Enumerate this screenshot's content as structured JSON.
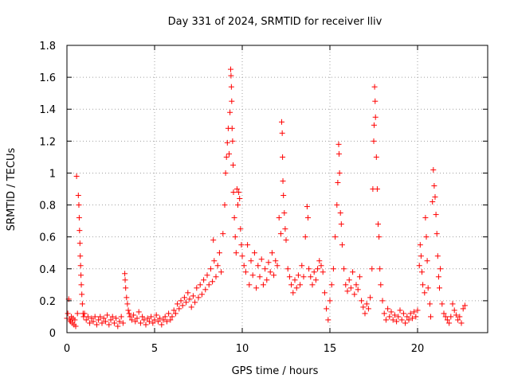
{
  "chart_data": {
    "type": "scatter",
    "title": "Day 331 of 2024, SRMTID for receiver lliv",
    "xlabel": "GPS time / hours",
    "ylabel": "SRMTID / TECUs",
    "xlim": [
      0,
      24
    ],
    "ylim": [
      0,
      1.8
    ],
    "xticks": [
      0,
      5,
      10,
      15,
      20
    ],
    "yticks": [
      0,
      0.2,
      0.4,
      0.6,
      0.8,
      1,
      1.2,
      1.4,
      1.6,
      1.8
    ],
    "xtick_labels": [
      "0",
      "5",
      "10",
      "15",
      "20"
    ],
    "ytick_labels": [
      "0",
      "0.2",
      "0.4",
      "0.6",
      "0.8",
      "1",
      "1.2",
      "1.4",
      "1.6",
      "1.8"
    ],
    "grid": true,
    "marker": "+",
    "color": "#ff0000",
    "series": [
      {
        "name": "SRMTID",
        "points": [
          [
            0.0,
            0.09
          ],
          [
            0.05,
            0.12
          ],
          [
            0.1,
            0.21
          ],
          [
            0.15,
            0.08
          ],
          [
            0.2,
            0.07
          ],
          [
            0.25,
            0.1
          ],
          [
            0.3,
            0.06
          ],
          [
            0.35,
            0.09
          ],
          [
            0.4,
            0.05
          ],
          [
            0.45,
            0.08
          ],
          [
            0.5,
            0.04
          ],
          [
            0.55,
            0.98
          ],
          [
            0.6,
            0.12
          ],
          [
            0.65,
            0.86
          ],
          [
            0.68,
            0.8
          ],
          [
            0.7,
            0.72
          ],
          [
            0.72,
            0.64
          ],
          [
            0.74,
            0.56
          ],
          [
            0.76,
            0.48
          ],
          [
            0.78,
            0.42
          ],
          [
            0.8,
            0.36
          ],
          [
            0.82,
            0.3
          ],
          [
            0.85,
            0.24
          ],
          [
            0.88,
            0.18
          ],
          [
            0.92,
            0.12
          ],
          [
            0.95,
            0.1
          ],
          [
            1.0,
            0.12
          ],
          [
            1.1,
            0.08
          ],
          [
            1.2,
            0.1
          ],
          [
            1.3,
            0.06
          ],
          [
            1.4,
            0.09
          ],
          [
            1.5,
            0.07
          ],
          [
            1.6,
            0.1
          ],
          [
            1.7,
            0.05
          ],
          [
            1.8,
            0.08
          ],
          [
            1.9,
            0.1
          ],
          [
            2.0,
            0.06
          ],
          [
            2.1,
            0.09
          ],
          [
            2.2,
            0.07
          ],
          [
            2.3,
            0.11
          ],
          [
            2.4,
            0.05
          ],
          [
            2.5,
            0.08
          ],
          [
            2.6,
            0.1
          ],
          [
            2.7,
            0.06
          ],
          [
            2.8,
            0.09
          ],
          [
            2.9,
            0.04
          ],
          [
            3.0,
            0.07
          ],
          [
            3.1,
            0.1
          ],
          [
            3.2,
            0.06
          ],
          [
            3.3,
            0.37
          ],
          [
            3.32,
            0.33
          ],
          [
            3.35,
            0.28
          ],
          [
            3.4,
            0.22
          ],
          [
            3.45,
            0.18
          ],
          [
            3.5,
            0.14
          ],
          [
            3.55,
            0.12
          ],
          [
            3.6,
            0.1
          ],
          [
            3.7,
            0.08
          ],
          [
            3.8,
            0.11
          ],
          [
            3.9,
            0.07
          ],
          [
            4.0,
            0.09
          ],
          [
            4.1,
            0.13
          ],
          [
            4.2,
            0.06
          ],
          [
            4.3,
            0.1
          ],
          [
            4.4,
            0.08
          ],
          [
            4.5,
            0.05
          ],
          [
            4.6,
            0.09
          ],
          [
            4.7,
            0.07
          ],
          [
            4.8,
            0.1
          ],
          [
            4.9,
            0.06
          ],
          [
            5.0,
            0.08
          ],
          [
            5.1,
            0.11
          ],
          [
            5.2,
            0.07
          ],
          [
            5.3,
            0.09
          ],
          [
            5.4,
            0.05
          ],
          [
            5.5,
            0.08
          ],
          [
            5.6,
            0.1
          ],
          [
            5.7,
            0.07
          ],
          [
            5.8,
            0.12
          ],
          [
            5.9,
            0.08
          ],
          [
            6.0,
            0.1
          ],
          [
            6.1,
            0.14
          ],
          [
            6.2,
            0.12
          ],
          [
            6.3,
            0.18
          ],
          [
            6.4,
            0.15
          ],
          [
            6.5,
            0.2
          ],
          [
            6.6,
            0.17
          ],
          [
            6.7,
            0.22
          ],
          [
            6.8,
            0.19
          ],
          [
            6.9,
            0.25
          ],
          [
            7.0,
            0.21
          ],
          [
            7.1,
            0.16
          ],
          [
            7.2,
            0.23
          ],
          [
            7.3,
            0.19
          ],
          [
            7.4,
            0.28
          ],
          [
            7.5,
            0.22
          ],
          [
            7.6,
            0.3
          ],
          [
            7.7,
            0.24
          ],
          [
            7.8,
            0.33
          ],
          [
            7.9,
            0.27
          ],
          [
            8.0,
            0.36
          ],
          [
            8.1,
            0.3
          ],
          [
            8.2,
            0.4
          ],
          [
            8.3,
            0.32
          ],
          [
            8.35,
            0.58
          ],
          [
            8.4,
            0.45
          ],
          [
            8.5,
            0.35
          ],
          [
            8.6,
            0.42
          ],
          [
            8.7,
            0.5
          ],
          [
            8.8,
            0.38
          ],
          [
            8.9,
            0.62
          ],
          [
            9.0,
            0.8
          ],
          [
            9.05,
            1.0
          ],
          [
            9.1,
            1.1
          ],
          [
            9.15,
            1.19
          ],
          [
            9.2,
            1.28
          ],
          [
            9.25,
            1.12
          ],
          [
            9.3,
            1.38
          ],
          [
            9.34,
            1.65
          ],
          [
            9.36,
            1.61
          ],
          [
            9.38,
            1.54
          ],
          [
            9.4,
            1.45
          ],
          [
            9.42,
            1.28
          ],
          [
            9.45,
            1.2
          ],
          [
            9.48,
            1.05
          ],
          [
            9.5,
            0.88
          ],
          [
            9.55,
            0.72
          ],
          [
            9.6,
            0.6
          ],
          [
            9.65,
            0.5
          ],
          [
            9.7,
            0.9
          ],
          [
            9.75,
            0.8
          ],
          [
            9.8,
            0.88
          ],
          [
            9.85,
            0.84
          ],
          [
            9.9,
            0.65
          ],
          [
            9.95,
            0.55
          ],
          [
            10.0,
            0.48
          ],
          [
            10.1,
            0.42
          ],
          [
            10.2,
            0.38
          ],
          [
            10.3,
            0.55
          ],
          [
            10.4,
            0.3
          ],
          [
            10.5,
            0.45
          ],
          [
            10.6,
            0.36
          ],
          [
            10.7,
            0.5
          ],
          [
            10.8,
            0.28
          ],
          [
            10.9,
            0.42
          ],
          [
            11.0,
            0.35
          ],
          [
            11.1,
            0.46
          ],
          [
            11.2,
            0.3
          ],
          [
            11.3,
            0.4
          ],
          [
            11.4,
            0.33
          ],
          [
            11.5,
            0.44
          ],
          [
            11.6,
            0.38
          ],
          [
            11.7,
            0.5
          ],
          [
            11.8,
            0.36
          ],
          [
            11.9,
            0.45
          ],
          [
            12.0,
            0.42
          ],
          [
            12.1,
            0.72
          ],
          [
            12.2,
            0.62
          ],
          [
            12.25,
            1.32
          ],
          [
            12.28,
            1.25
          ],
          [
            12.3,
            1.1
          ],
          [
            12.32,
            0.95
          ],
          [
            12.35,
            0.86
          ],
          [
            12.4,
            0.75
          ],
          [
            12.45,
            0.65
          ],
          [
            12.5,
            0.58
          ],
          [
            12.6,
            0.4
          ],
          [
            12.7,
            0.35
          ],
          [
            12.8,
            0.3
          ],
          [
            12.9,
            0.25
          ],
          [
            13.0,
            0.33
          ],
          [
            13.1,
            0.28
          ],
          [
            13.2,
            0.36
          ],
          [
            13.3,
            0.3
          ],
          [
            13.4,
            0.42
          ],
          [
            13.5,
            0.35
          ],
          [
            13.6,
            0.6
          ],
          [
            13.7,
            0.79
          ],
          [
            13.75,
            0.72
          ],
          [
            13.8,
            0.4
          ],
          [
            13.9,
            0.35
          ],
          [
            14.0,
            0.3
          ],
          [
            14.1,
            0.38
          ],
          [
            14.2,
            0.33
          ],
          [
            14.3,
            0.4
          ],
          [
            14.4,
            0.45
          ],
          [
            14.5,
            0.42
          ],
          [
            14.6,
            0.38
          ],
          [
            14.7,
            0.25
          ],
          [
            14.8,
            0.15
          ],
          [
            14.9,
            0.08
          ],
          [
            15.0,
            0.2
          ],
          [
            15.1,
            0.3
          ],
          [
            15.2,
            0.4
          ],
          [
            15.3,
            0.6
          ],
          [
            15.4,
            0.8
          ],
          [
            15.45,
            0.94
          ],
          [
            15.5,
            1.18
          ],
          [
            15.52,
            1.12
          ],
          [
            15.55,
            1.0
          ],
          [
            15.6,
            0.75
          ],
          [
            15.65,
            0.68
          ],
          [
            15.7,
            0.55
          ],
          [
            15.8,
            0.4
          ],
          [
            15.9,
            0.3
          ],
          [
            16.0,
            0.26
          ],
          [
            16.1,
            0.33
          ],
          [
            16.2,
            0.28
          ],
          [
            16.3,
            0.38
          ],
          [
            16.4,
            0.24
          ],
          [
            16.5,
            0.3
          ],
          [
            16.6,
            0.27
          ],
          [
            16.7,
            0.35
          ],
          [
            16.8,
            0.2
          ],
          [
            16.9,
            0.16
          ],
          [
            17.0,
            0.12
          ],
          [
            17.1,
            0.18
          ],
          [
            17.2,
            0.15
          ],
          [
            17.3,
            0.22
          ],
          [
            17.4,
            0.4
          ],
          [
            17.45,
            0.9
          ],
          [
            17.5,
            1.2
          ],
          [
            17.52,
            1.3
          ],
          [
            17.55,
            1.54
          ],
          [
            17.58,
            1.45
          ],
          [
            17.6,
            1.35
          ],
          [
            17.65,
            1.1
          ],
          [
            17.7,
            0.9
          ],
          [
            17.75,
            0.68
          ],
          [
            17.8,
            0.6
          ],
          [
            17.85,
            0.4
          ],
          [
            17.9,
            0.3
          ],
          [
            18.0,
            0.2
          ],
          [
            18.1,
            0.12
          ],
          [
            18.2,
            0.08
          ],
          [
            18.3,
            0.15
          ],
          [
            18.4,
            0.1
          ],
          [
            18.5,
            0.13
          ],
          [
            18.6,
            0.08
          ],
          [
            18.7,
            0.11
          ],
          [
            18.8,
            0.07
          ],
          [
            18.9,
            0.1
          ],
          [
            19.0,
            0.14
          ],
          [
            19.1,
            0.08
          ],
          [
            19.2,
            0.12
          ],
          [
            19.3,
            0.06
          ],
          [
            19.4,
            0.1
          ],
          [
            19.5,
            0.08
          ],
          [
            19.6,
            0.12
          ],
          [
            19.7,
            0.09
          ],
          [
            19.8,
            0.13
          ],
          [
            19.9,
            0.1
          ],
          [
            20.0,
            0.14
          ],
          [
            20.1,
            0.42
          ],
          [
            20.15,
            0.55
          ],
          [
            20.2,
            0.48
          ],
          [
            20.25,
            0.38
          ],
          [
            20.3,
            0.3
          ],
          [
            20.4,
            0.25
          ],
          [
            20.45,
            0.72
          ],
          [
            20.5,
            0.6
          ],
          [
            20.55,
            0.45
          ],
          [
            20.6,
            0.28
          ],
          [
            20.7,
            0.18
          ],
          [
            20.75,
            0.1
          ],
          [
            20.85,
            0.82
          ],
          [
            20.9,
            1.02
          ],
          [
            20.95,
            0.92
          ],
          [
            21.0,
            0.85
          ],
          [
            21.05,
            0.74
          ],
          [
            21.1,
            0.62
          ],
          [
            21.15,
            0.48
          ],
          [
            21.2,
            0.35
          ],
          [
            21.25,
            0.28
          ],
          [
            21.3,
            0.4
          ],
          [
            21.4,
            0.18
          ],
          [
            21.5,
            0.12
          ],
          [
            21.6,
            0.1
          ],
          [
            21.7,
            0.08
          ],
          [
            21.8,
            0.06
          ],
          [
            21.9,
            0.1
          ],
          [
            22.0,
            0.18
          ],
          [
            22.1,
            0.14
          ],
          [
            22.2,
            0.11
          ],
          [
            22.3,
            0.08
          ],
          [
            22.4,
            0.1
          ],
          [
            22.5,
            0.06
          ],
          [
            22.6,
            0.15
          ],
          [
            22.7,
            0.17
          ]
        ]
      }
    ]
  }
}
